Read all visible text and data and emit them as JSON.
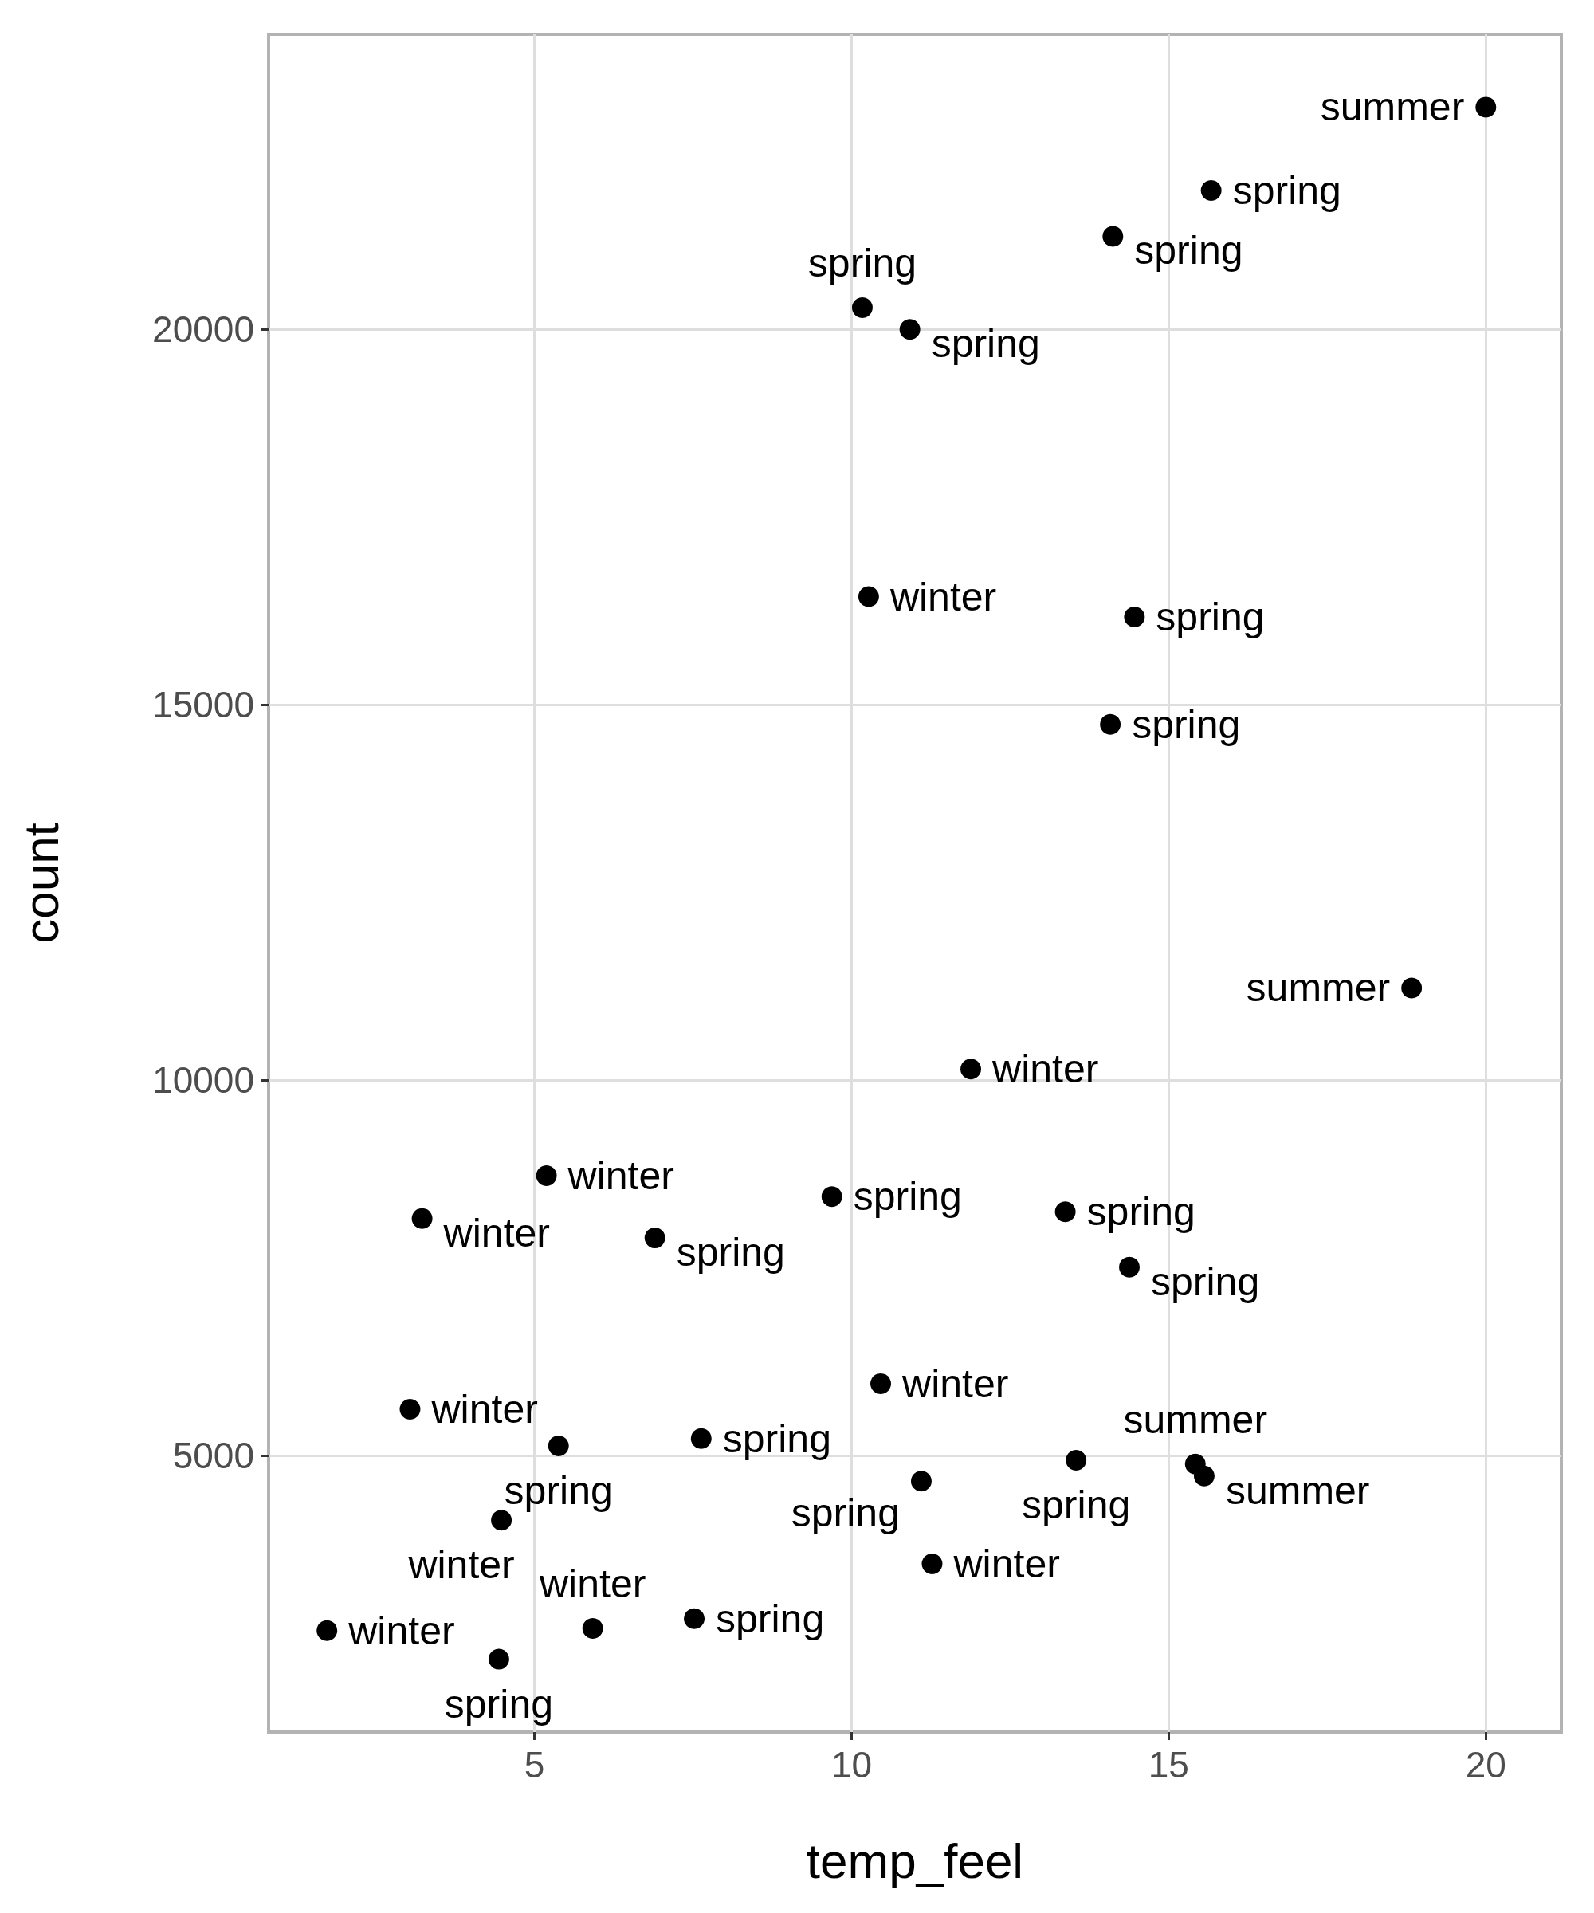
{
  "chart_data": {
    "type": "scatter",
    "xlabel": "temp_feel",
    "ylabel": "count",
    "x": [
      20.0,
      15.67,
      14.12,
      10.17,
      10.92,
      10.27,
      14.46,
      14.08,
      18.83,
      11.88,
      5.19,
      3.23,
      6.9,
      9.69,
      13.37,
      14.38,
      10.46,
      3.04,
      5.38,
      7.63,
      13.54,
      15.42,
      15.56,
      11.1,
      4.48,
      11.27,
      1.73,
      5.92,
      7.52,
      4.44
    ],
    "series": [
      {
        "color": "#000000",
        "values": [
          22960,
          21850,
          21240,
          20290,
          20000,
          16440,
          16170,
          14740,
          11230,
          10150,
          8730,
          8160,
          7900,
          8450,
          8250,
          7510,
          5960,
          5620,
          5130,
          5230,
          4940,
          4890,
          4730,
          4660,
          4140,
          3560,
          2670,
          2700,
          2830,
          2290
        ],
        "value_labels": [
          "summer",
          "spring",
          "spring",
          "spring",
          "spring",
          "winter",
          "spring",
          "spring",
          "summer",
          "winter",
          "winter",
          "winter",
          "spring",
          "spring",
          "spring",
          "spring",
          "winter",
          "winter",
          "spring",
          "spring",
          "spring",
          "summer",
          "summer",
          "spring",
          "winter",
          "winter",
          "winter",
          "winter",
          "spring",
          "spring"
        ]
      }
    ],
    "xlim": [
      0.81,
      21.19
    ],
    "ylim": [
      1320,
      23930
    ],
    "xticks": [
      5,
      10,
      15,
      20
    ],
    "yticks": [
      5000,
      10000,
      15000,
      20000
    ],
    "grid": true,
    "marker": "circle"
  }
}
